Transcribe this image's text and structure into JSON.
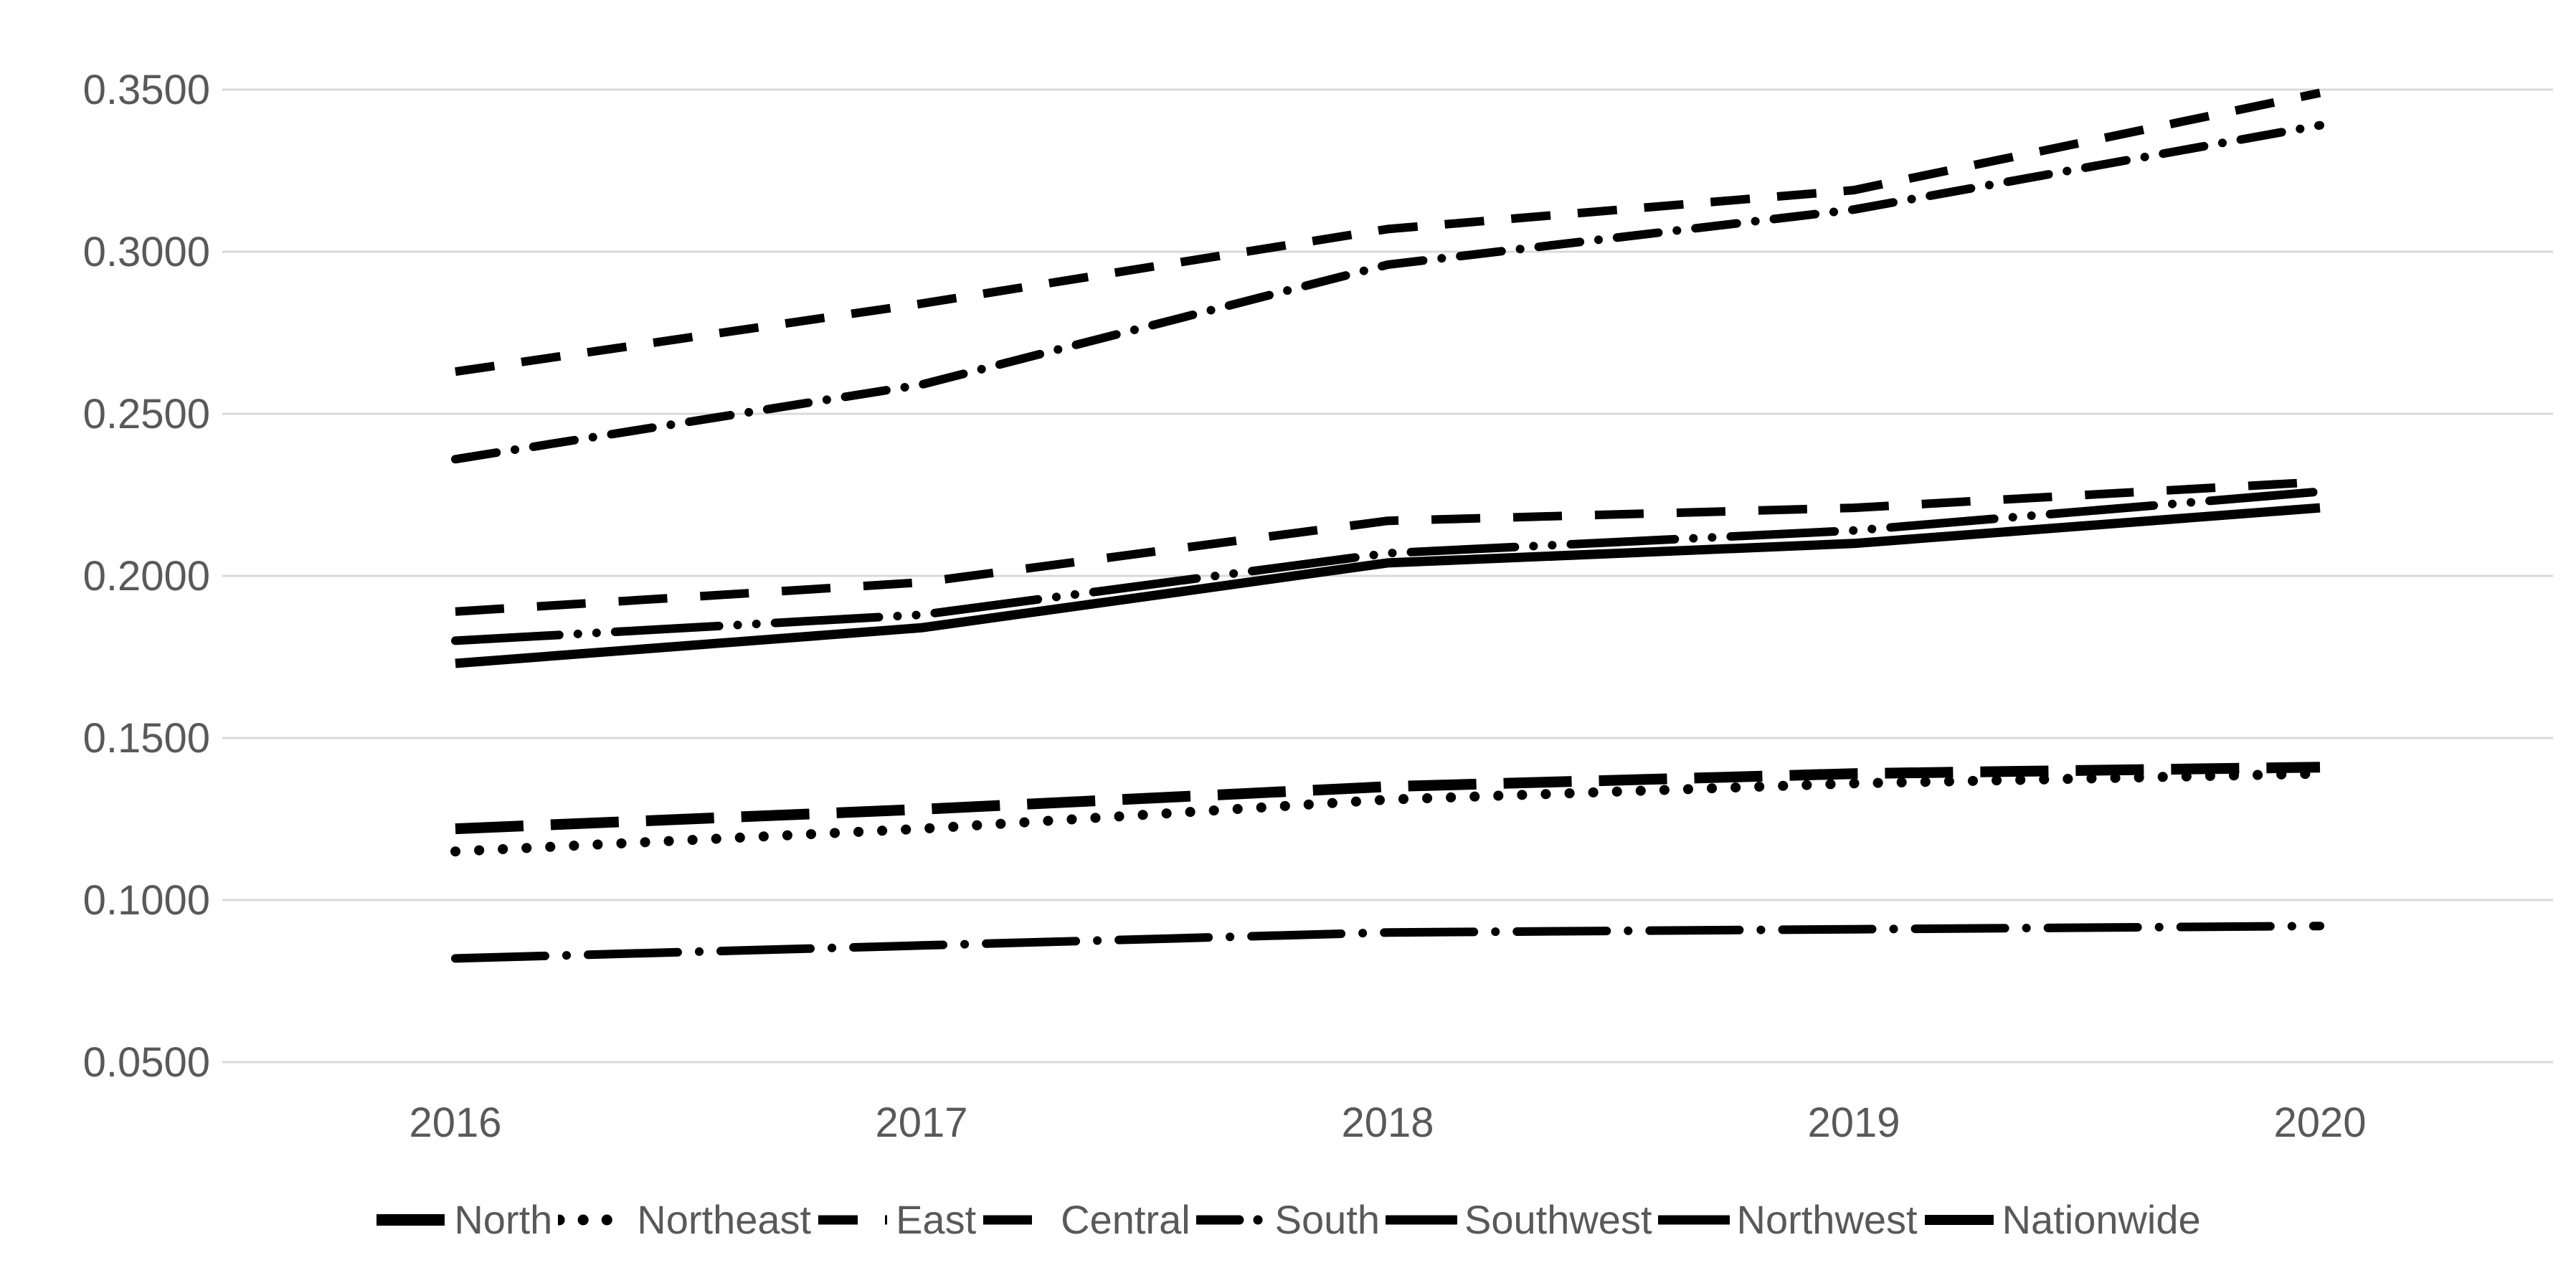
{
  "chart_data": {
    "type": "line",
    "categories": [
      "2016",
      "2017",
      "2018",
      "2019",
      "2020"
    ],
    "series": [
      {
        "name": "North",
        "values": [
          0.122,
          0.128,
          0.135,
          0.139,
          0.141
        ],
        "dash": "long-dash",
        "width": 15
      },
      {
        "name": "Northeast",
        "values": [
          0.115,
          0.122,
          0.131,
          0.136,
          0.139
        ],
        "dash": "dot",
        "width": 14
      },
      {
        "name": "East",
        "values": [
          0.263,
          0.284,
          0.307,
          0.319,
          0.349
        ],
        "dash": "dash",
        "width": 12
      },
      {
        "name": "Central",
        "values": [
          0.189,
          0.198,
          0.217,
          0.221,
          0.229
        ],
        "dash": "dash-large-gap",
        "width": 12
      },
      {
        "name": "South",
        "values": [
          0.236,
          0.259,
          0.296,
          0.313,
          0.339
        ],
        "dash": "dash-dot",
        "width": 12
      },
      {
        "name": "Southwest",
        "values": [
          0.082,
          0.086,
          0.09,
          0.091,
          0.092
        ],
        "dash": "long-dash-dot",
        "width": 12
      },
      {
        "name": "Northwest",
        "values": [
          0.18,
          0.188,
          0.207,
          0.214,
          0.226
        ],
        "dash": "long-dash-dot-dot",
        "width": 12
      },
      {
        "name": "Nationwide",
        "values": [
          0.173,
          0.184,
          0.204,
          0.21,
          0.221
        ],
        "dash": "solid",
        "width": 13
      }
    ],
    "title": "",
    "xlabel": "",
    "ylabel": "",
    "ylim": [
      0.05,
      0.35
    ],
    "ytick_step": 0.05,
    "ytick_labels": [
      "0.3500",
      "0.3000",
      "0.2500",
      "0.2000",
      "0.1500",
      "0.1000",
      "0.0500"
    ],
    "grid": true,
    "legend_position": "bottom",
    "line_color": "#000000",
    "gridline_color": "#d9d9d9",
    "text_color": "#595959"
  }
}
